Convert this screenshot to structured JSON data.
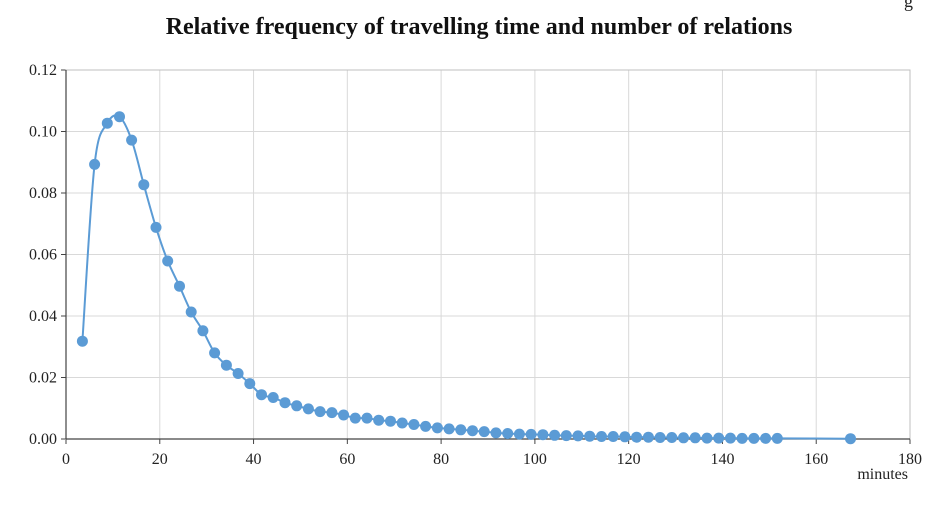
{
  "chart_data": {
    "type": "line",
    "title": "Relative frequency of travelling time and number of relations",
    "corner_text": "g",
    "xlabel": "minutes",
    "ylabel": "",
    "xlim": [
      0,
      180
    ],
    "ylim": [
      0,
      0.12
    ],
    "x_ticks": [
      0,
      20,
      40,
      60,
      80,
      100,
      120,
      140,
      160,
      180
    ],
    "y_ticks": [
      "0.00",
      "0.02",
      "0.04",
      "0.06",
      "0.08",
      "0.10",
      "0.12"
    ],
    "grid": true,
    "series": [
      {
        "color": "#5b9bd5",
        "points": [
          [
            3.5,
            0.0318
          ],
          [
            6.1,
            0.0893
          ],
          [
            8.8,
            0.1027
          ],
          [
            11.4,
            0.1048
          ],
          [
            14.0,
            0.0972
          ],
          [
            16.6,
            0.0827
          ],
          [
            19.2,
            0.0688
          ],
          [
            21.7,
            0.0579
          ],
          [
            24.2,
            0.0497
          ],
          [
            26.7,
            0.0413
          ],
          [
            29.2,
            0.0352
          ],
          [
            31.7,
            0.028
          ],
          [
            34.2,
            0.024
          ],
          [
            36.7,
            0.0213
          ],
          [
            39.2,
            0.018
          ],
          [
            41.7,
            0.0144
          ],
          [
            44.2,
            0.0135
          ],
          [
            46.7,
            0.0118
          ],
          [
            49.2,
            0.0108
          ],
          [
            51.7,
            0.0098
          ],
          [
            54.2,
            0.0089
          ],
          [
            56.7,
            0.0086
          ],
          [
            59.2,
            0.0078
          ],
          [
            61.7,
            0.0068
          ],
          [
            64.2,
            0.0068
          ],
          [
            66.7,
            0.0061
          ],
          [
            69.2,
            0.0058
          ],
          [
            71.7,
            0.0052
          ],
          [
            74.2,
            0.0047
          ],
          [
            76.7,
            0.0041
          ],
          [
            79.2,
            0.0036
          ],
          [
            81.7,
            0.0033
          ],
          [
            84.2,
            0.003
          ],
          [
            86.7,
            0.0027
          ],
          [
            89.2,
            0.0024
          ],
          [
            91.7,
            0.002
          ],
          [
            94.2,
            0.0018
          ],
          [
            96.7,
            0.0016
          ],
          [
            99.2,
            0.0015
          ],
          [
            101.7,
            0.0014
          ],
          [
            104.2,
            0.0012
          ],
          [
            106.7,
            0.0011
          ],
          [
            109.2,
            0.001
          ],
          [
            111.7,
            0.0009
          ],
          [
            114.2,
            0.0008
          ],
          [
            116.7,
            0.0008
          ],
          [
            119.2,
            0.0007
          ],
          [
            121.7,
            0.0006
          ],
          [
            124.2,
            0.0006
          ],
          [
            126.7,
            0.0005
          ],
          [
            129.2,
            0.0005
          ],
          [
            131.7,
            0.0004
          ],
          [
            134.2,
            0.0004
          ],
          [
            136.7,
            0.0003
          ],
          [
            139.2,
            0.0003
          ],
          [
            141.7,
            0.0003
          ],
          [
            144.2,
            0.0002
          ],
          [
            146.7,
            0.0002
          ],
          [
            149.2,
            0.0002
          ],
          [
            151.7,
            0.0002
          ],
          [
            167.3,
            0.0001
          ]
        ]
      }
    ]
  }
}
